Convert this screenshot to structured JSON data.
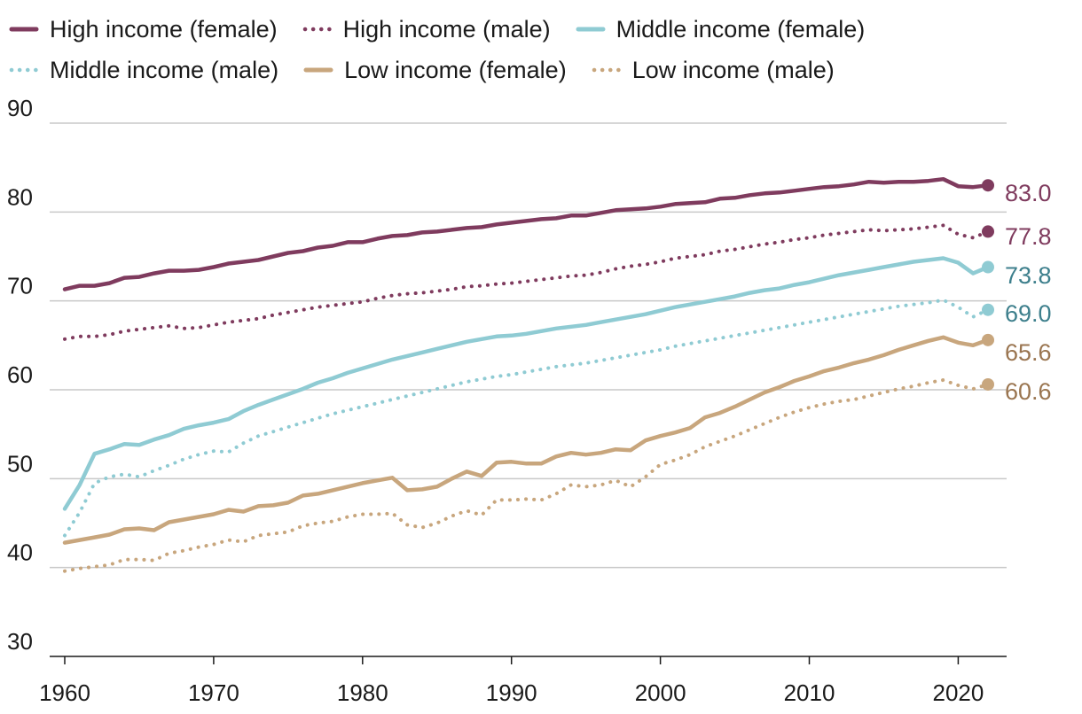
{
  "chart_data": {
    "type": "line",
    "title": "",
    "xlabel": "",
    "ylabel": "",
    "xlim": [
      1960,
      2022
    ],
    "ylim": [
      30,
      90
    ],
    "grid": true,
    "legend_position": "top",
    "x_ticks": [
      "1960",
      "1970",
      "1980",
      "1990",
      "2000",
      "2010",
      "2020"
    ],
    "y_ticks": [
      "30",
      "40",
      "50",
      "60",
      "70",
      "80",
      "90"
    ],
    "x": [
      1960,
      1961,
      1962,
      1963,
      1964,
      1965,
      1966,
      1967,
      1968,
      1969,
      1970,
      1971,
      1972,
      1973,
      1974,
      1975,
      1976,
      1977,
      1978,
      1979,
      1980,
      1981,
      1982,
      1983,
      1984,
      1985,
      1986,
      1987,
      1988,
      1989,
      1990,
      1991,
      1992,
      1993,
      1994,
      1995,
      1996,
      1997,
      1998,
      1999,
      2000,
      2001,
      2002,
      2003,
      2004,
      2005,
      2006,
      2007,
      2008,
      2009,
      2010,
      2011,
      2012,
      2013,
      2014,
      2015,
      2016,
      2017,
      2018,
      2019,
      2020,
      2021,
      2022
    ],
    "series": [
      {
        "name": "High income (female)",
        "color": "#7f3b5e",
        "style": "solid",
        "end_label": "83.0",
        "values": [
          71.3,
          71.7,
          71.7,
          72.0,
          72.6,
          72.7,
          73.1,
          73.4,
          73.4,
          73.5,
          73.8,
          74.2,
          74.4,
          74.6,
          75.0,
          75.4,
          75.6,
          76.0,
          76.2,
          76.6,
          76.6,
          77.0,
          77.3,
          77.4,
          77.7,
          77.8,
          78.0,
          78.2,
          78.3,
          78.6,
          78.8,
          79.0,
          79.2,
          79.3,
          79.6,
          79.6,
          79.9,
          80.2,
          80.3,
          80.4,
          80.6,
          80.9,
          81.0,
          81.1,
          81.5,
          81.6,
          81.9,
          82.1,
          82.2,
          82.4,
          82.6,
          82.8,
          82.9,
          83.1,
          83.4,
          83.3,
          83.4,
          83.4,
          83.5,
          83.7,
          82.9,
          82.8,
          83.0
        ]
      },
      {
        "name": "High income (male)",
        "color": "#7f3b5e",
        "style": "dotted",
        "end_label": "77.8",
        "values": [
          65.7,
          66.0,
          66.0,
          66.2,
          66.6,
          66.8,
          67.0,
          67.2,
          66.9,
          67.0,
          67.3,
          67.6,
          67.8,
          68.0,
          68.4,
          68.7,
          69.0,
          69.3,
          69.5,
          69.7,
          69.9,
          70.3,
          70.6,
          70.8,
          70.9,
          71.1,
          71.3,
          71.6,
          71.7,
          71.9,
          72.0,
          72.2,
          72.4,
          72.6,
          72.8,
          72.9,
          73.2,
          73.6,
          73.9,
          74.1,
          74.4,
          74.8,
          75.0,
          75.2,
          75.6,
          75.8,
          76.1,
          76.4,
          76.6,
          76.9,
          77.1,
          77.4,
          77.6,
          77.8,
          78.0,
          77.9,
          78.0,
          78.1,
          78.3,
          78.5,
          77.5,
          77.1,
          77.8
        ]
      },
      {
        "name": "Middle income (female)",
        "color": "#8fcbd3",
        "style": "solid",
        "end_label": "73.8",
        "values": [
          46.6,
          49.3,
          52.8,
          53.3,
          53.9,
          53.8,
          54.4,
          54.9,
          55.6,
          56.0,
          56.3,
          56.7,
          57.6,
          58.3,
          58.9,
          59.5,
          60.1,
          60.8,
          61.3,
          61.9,
          62.4,
          62.9,
          63.4,
          63.8,
          64.2,
          64.6,
          65.0,
          65.4,
          65.7,
          66.0,
          66.1,
          66.3,
          66.6,
          66.9,
          67.1,
          67.3,
          67.6,
          67.9,
          68.2,
          68.5,
          68.9,
          69.3,
          69.6,
          69.9,
          70.2,
          70.5,
          70.9,
          71.2,
          71.4,
          71.8,
          72.1,
          72.5,
          72.9,
          73.2,
          73.5,
          73.8,
          74.1,
          74.4,
          74.6,
          74.8,
          74.3,
          73.1,
          73.8
        ]
      },
      {
        "name": "Middle income (male)",
        "color": "#8fcbd3",
        "style": "dotted",
        "end_label": "69.0",
        "values": [
          43.6,
          46.2,
          49.5,
          50.2,
          50.5,
          50.2,
          50.9,
          51.5,
          52.2,
          52.7,
          53.1,
          53.0,
          54.0,
          54.8,
          55.3,
          55.8,
          56.3,
          56.8,
          57.3,
          57.7,
          58.1,
          58.5,
          58.9,
          59.3,
          59.7,
          60.1,
          60.5,
          60.9,
          61.2,
          61.5,
          61.7,
          62.0,
          62.3,
          62.6,
          62.8,
          63.0,
          63.3,
          63.6,
          63.9,
          64.2,
          64.5,
          64.9,
          65.2,
          65.5,
          65.8,
          66.1,
          66.4,
          66.7,
          67.0,
          67.3,
          67.6,
          67.9,
          68.2,
          68.5,
          68.8,
          69.1,
          69.4,
          69.6,
          69.8,
          70.1,
          69.3,
          68.2,
          69.0
        ]
      },
      {
        "name": "Low income (female)",
        "color": "#c8a67d",
        "style": "solid",
        "end_label": "65.6",
        "values": [
          42.8,
          43.1,
          43.4,
          43.7,
          44.3,
          44.4,
          44.2,
          45.1,
          45.4,
          45.7,
          46.0,
          46.5,
          46.3,
          46.9,
          47.0,
          47.3,
          48.1,
          48.3,
          48.7,
          49.1,
          49.5,
          49.8,
          50.1,
          48.7,
          48.8,
          49.1,
          50.0,
          50.8,
          50.3,
          51.8,
          51.9,
          51.7,
          51.7,
          52.5,
          52.9,
          52.7,
          52.9,
          53.3,
          53.2,
          54.3,
          54.8,
          55.2,
          55.7,
          56.9,
          57.4,
          58.1,
          58.9,
          59.7,
          60.3,
          61.0,
          61.5,
          62.1,
          62.5,
          63.0,
          63.4,
          63.9,
          64.5,
          65.0,
          65.5,
          65.9,
          65.3,
          65.0,
          65.6
        ]
      },
      {
        "name": "Low income (male)",
        "color": "#c8a67d",
        "style": "dotted",
        "end_label": "60.6",
        "values": [
          39.6,
          39.9,
          40.1,
          40.3,
          40.9,
          40.9,
          40.8,
          41.6,
          41.9,
          42.3,
          42.6,
          43.1,
          42.9,
          43.6,
          43.8,
          44.0,
          44.7,
          45.0,
          45.2,
          45.7,
          46.0,
          46.0,
          46.1,
          44.8,
          44.5,
          45.0,
          45.8,
          46.4,
          45.9,
          47.6,
          47.6,
          47.7,
          47.6,
          48.3,
          49.3,
          49.1,
          49.3,
          49.8,
          49.1,
          50.2,
          51.6,
          52.1,
          52.7,
          53.6,
          54.2,
          54.8,
          55.5,
          56.2,
          56.9,
          57.5,
          58.0,
          58.4,
          58.7,
          58.9,
          59.3,
          59.7,
          60.1,
          60.4,
          60.8,
          61.1,
          60.5,
          60.1,
          60.6
        ]
      }
    ]
  }
}
